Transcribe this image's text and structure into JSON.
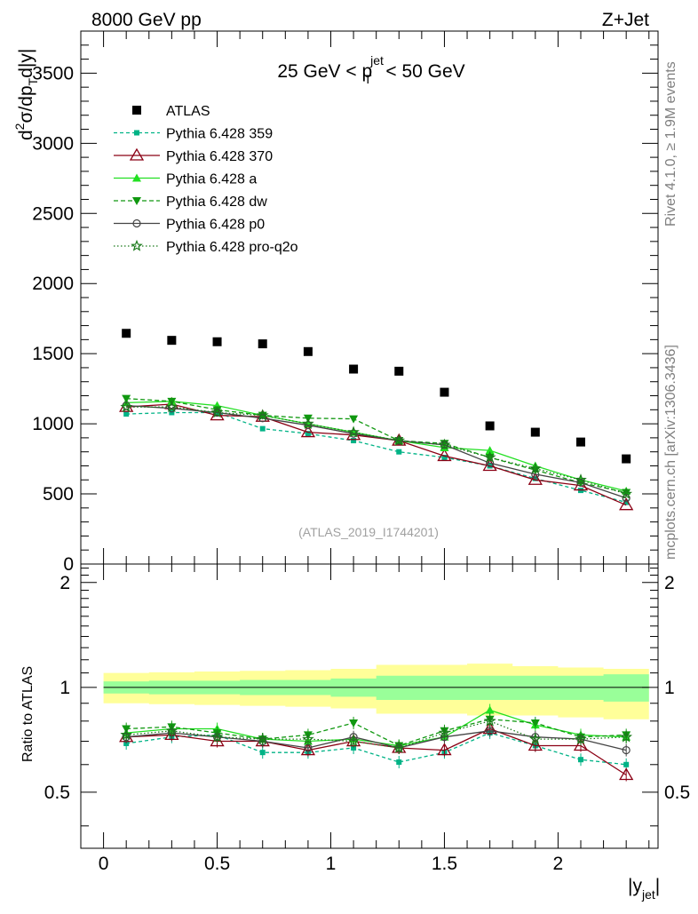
{
  "header": {
    "left": "8000 GeV pp",
    "right": "Z+Jet"
  },
  "side_text": {
    "rivet": "Rivet 4.1.0, ≥ 1.9M events",
    "mcplots": "mcplots.cern.ch [arXiv:1306.3436]"
  },
  "chart_data": [
    {
      "type": "line",
      "panel": "main",
      "title_parts": {
        "pre": "25 GeV < p",
        "sup": "jet",
        "sub": "T",
        "post": " < 50 GeV"
      },
      "ylabel_parts": {
        "d": "d",
        "sup2": "2",
        "sigma": "σ/dp",
        "subT": "T",
        "rest": "d|y|"
      },
      "watermark": "(ATLAS_2019_I1744201)",
      "xlim": [
        -0.1,
        2.44
      ],
      "ylim": [
        0,
        3800
      ],
      "yticks": [
        0,
        500,
        1000,
        1500,
        2000,
        2500,
        3000,
        3500
      ],
      "ytick_labels": [
        "0",
        "500",
        "1000",
        "1500",
        "2000",
        "2500",
        "3000",
        "3500"
      ],
      "x": [
        0.1,
        0.3,
        0.5,
        0.7,
        0.9,
        1.1,
        1.3,
        1.5,
        1.7,
        1.9,
        2.1,
        2.3
      ],
      "series": [
        {
          "name": "ATLAS",
          "color": "#000000",
          "marker": "square",
          "values": [
            1645,
            1595,
            1585,
            1570,
            1515,
            1390,
            1375,
            1225,
            985,
            940,
            870,
            750
          ]
        },
        {
          "name": "Pythia 6.428 359",
          "color": "#00b386",
          "marker": "smallsquare",
          "dash": "4,3",
          "values": [
            1070,
            1080,
            1080,
            965,
            930,
            880,
            800,
            760,
            700,
            610,
            525,
            440
          ]
        },
        {
          "name": "Pythia 6.428 370",
          "color": "#8b0014",
          "marker": "opentriangle",
          "values": [
            1120,
            1140,
            1060,
            1050,
            940,
            920,
            880,
            770,
            700,
            600,
            560,
            420
          ]
        },
        {
          "name": "Pythia 6.428 a",
          "color": "#22e022",
          "marker": "triangle",
          "values": [
            1150,
            1160,
            1130,
            1060,
            1000,
            940,
            880,
            830,
            810,
            700,
            600,
            520
          ]
        },
        {
          "name": "Pythia 6.428 dw",
          "color": "#109810",
          "marker": "invtriangle",
          "dash": "5,3",
          "values": [
            1180,
            1160,
            1100,
            1060,
            1040,
            1035,
            880,
            860,
            760,
            670,
            580,
            510
          ]
        },
        {
          "name": "Pythia 6.428 p0",
          "color": "#444444",
          "marker": "opencircle",
          "values": [
            1130,
            1110,
            1080,
            1040,
            990,
            930,
            880,
            850,
            720,
            640,
            580,
            470
          ]
        },
        {
          "name": "Pythia 6.428 pro-q2o",
          "color": "#1a7a1a",
          "marker": "star",
          "dash": "1.5,2.5",
          "values": [
            1120,
            1120,
            1080,
            1060,
            1000,
            940,
            880,
            850,
            760,
            680,
            600,
            500
          ]
        }
      ]
    },
    {
      "type": "line",
      "panel": "ratio",
      "ylabel": "Ratio to ATLAS",
      "xlabel_parts": {
        "main": "|y",
        "sub": "jet",
        "end": "|"
      },
      "xlim": [
        -0.1,
        2.44
      ],
      "ylim": [
        0.345,
        2.26
      ],
      "xticks": [
        0,
        0.5,
        1,
        1.5,
        2
      ],
      "xtick_labels": [
        "0",
        "0.5",
        "1",
        "1.5",
        "2"
      ],
      "yticks": [
        0.5,
        1,
        2
      ],
      "ytick_labels": [
        "0.5",
        "1",
        "2"
      ],
      "bands": {
        "edges": [
          0.0,
          0.2,
          0.4,
          0.6,
          0.8,
          1.0,
          1.2,
          1.4,
          1.6,
          1.8,
          2.0,
          2.2,
          2.4
        ],
        "outer": [
          [
            0.9,
            1.1
          ],
          [
            0.895,
            1.105
          ],
          [
            0.89,
            1.11
          ],
          [
            0.885,
            1.115
          ],
          [
            0.88,
            1.12
          ],
          [
            0.87,
            1.13
          ],
          [
            0.84,
            1.16
          ],
          [
            0.84,
            1.16
          ],
          [
            0.83,
            1.17
          ],
          [
            0.83,
            1.15
          ],
          [
            0.82,
            1.14
          ],
          [
            0.81,
            1.13
          ]
        ],
        "inner": [
          [
            0.96,
            1.04
          ],
          [
            0.955,
            1.045
          ],
          [
            0.955,
            1.045
          ],
          [
            0.95,
            1.05
          ],
          [
            0.95,
            1.05
          ],
          [
            0.94,
            1.06
          ],
          [
            0.92,
            1.08
          ],
          [
            0.92,
            1.08
          ],
          [
            0.92,
            1.08
          ],
          [
            0.92,
            1.08
          ],
          [
            0.92,
            1.08
          ],
          [
            0.91,
            1.09
          ]
        ],
        "outer_color": "#ffff99",
        "inner_color": "#99ff99"
      },
      "series": [
        {
          "name": "Pythia 6.428 359",
          "color": "#00b386",
          "marker": "smallsquare",
          "dash": "4,3",
          "values": [
            0.69,
            0.72,
            0.73,
            0.65,
            0.65,
            0.67,
            0.61,
            0.65,
            0.74,
            0.68,
            0.62,
            0.6
          ]
        },
        {
          "name": "Pythia 6.428 370",
          "color": "#8b0014",
          "marker": "opentriangle",
          "values": [
            0.72,
            0.73,
            0.7,
            0.7,
            0.66,
            0.7,
            0.67,
            0.66,
            0.76,
            0.68,
            0.68,
            0.56
          ]
        },
        {
          "name": "Pythia 6.428 a",
          "color": "#22e022",
          "marker": "triangle",
          "values": [
            0.74,
            0.76,
            0.76,
            0.71,
            0.7,
            0.71,
            0.68,
            0.72,
            0.86,
            0.78,
            0.73,
            0.72
          ]
        },
        {
          "name": "Pythia 6.428 dw",
          "color": "#109810",
          "marker": "invtriangle",
          "dash": "5,3",
          "values": [
            0.76,
            0.77,
            0.74,
            0.71,
            0.73,
            0.79,
            0.68,
            0.75,
            0.81,
            0.79,
            0.72,
            0.73
          ]
        },
        {
          "name": "Pythia 6.428 p0",
          "color": "#444444",
          "marker": "opencircle",
          "values": [
            0.72,
            0.74,
            0.72,
            0.7,
            0.67,
            0.72,
            0.67,
            0.72,
            0.75,
            0.72,
            0.71,
            0.66
          ]
        },
        {
          "name": "Pythia 6.428 pro-q2o",
          "color": "#1a7a1a",
          "marker": "star",
          "dash": "1.5,2.5",
          "values": [
            0.73,
            0.75,
            0.72,
            0.71,
            0.71,
            0.7,
            0.67,
            0.74,
            0.8,
            0.71,
            0.71,
            0.72
          ]
        }
      ]
    }
  ]
}
